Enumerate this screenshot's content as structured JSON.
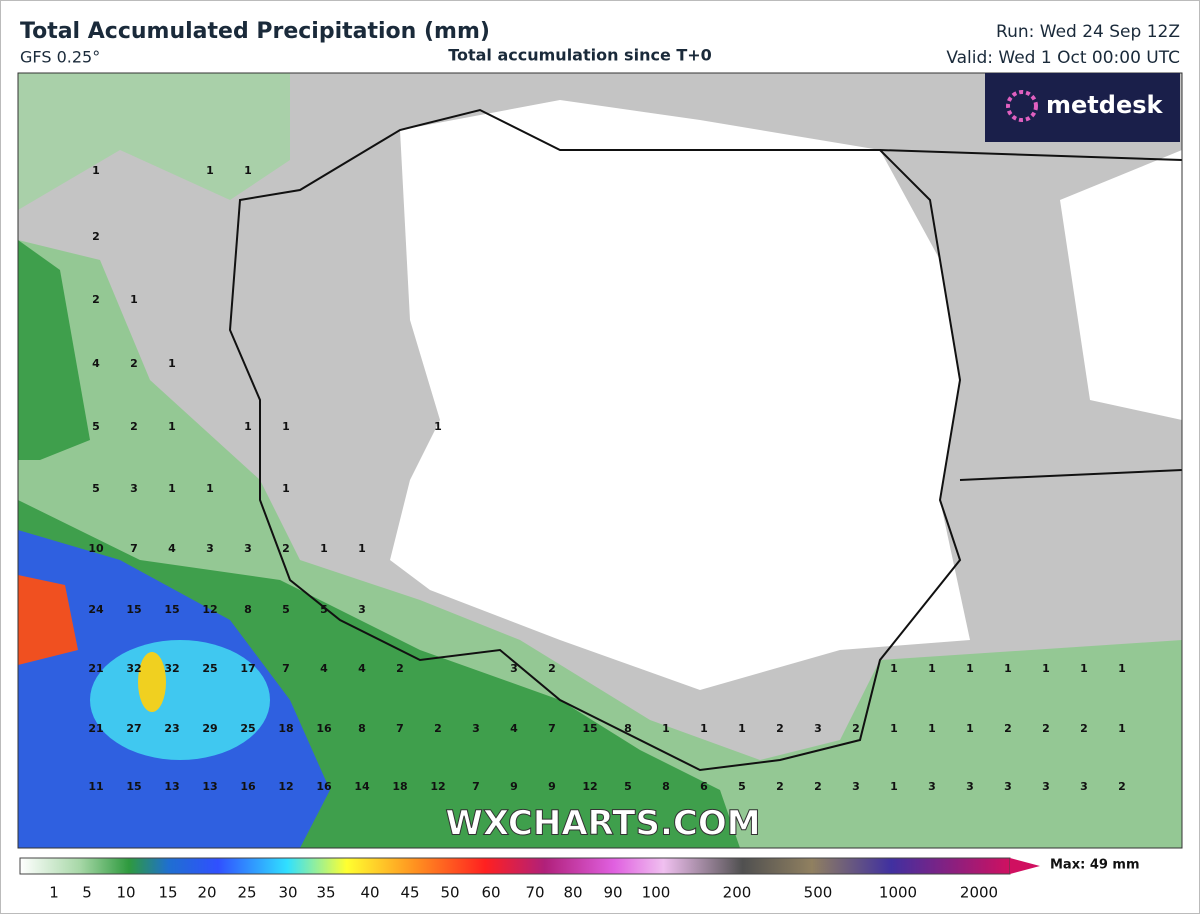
{
  "header": {
    "title": "Total Accumulated Precipitation (mm)",
    "model": "GFS 0.25°",
    "subtitle": "Total accumulation since T+0",
    "run": "Run: Wed 24 Sep 12Z",
    "valid": "Valid: Wed 1 Oct 00:00 UTC"
  },
  "logo": "metdesk",
  "watermark": "WXCHARTS.COM",
  "map": {
    "point_values": [
      [
        1,
        null,
        null,
        1,
        1,
        null,
        null,
        null,
        null,
        null,
        null,
        null,
        null,
        null,
        null,
        null,
        null,
        null,
        null,
        null,
        null,
        null,
        null,
        null,
        null,
        null,
        null,
        null
      ],
      [
        2,
        null,
        null,
        null,
        null,
        null,
        null,
        null,
        null,
        null,
        null,
        null,
        null,
        null,
        null,
        null,
        null,
        null,
        null,
        null,
        null,
        null,
        null,
        null,
        null,
        null,
        null,
        null
      ],
      [
        2,
        1,
        null,
        null,
        null,
        null,
        null,
        null,
        null,
        null,
        null,
        null,
        null,
        null,
        null,
        null,
        null,
        null,
        null,
        null,
        null,
        null,
        null,
        null,
        null,
        null,
        null,
        null
      ],
      [
        4,
        2,
        1,
        null,
        null,
        null,
        null,
        null,
        null,
        null,
        null,
        null,
        null,
        null,
        null,
        null,
        null,
        null,
        null,
        null,
        null,
        null,
        null,
        null,
        null,
        null,
        null,
        null
      ],
      [
        5,
        2,
        1,
        null,
        1,
        1,
        null,
        null,
        null,
        1,
        null,
        null,
        null,
        null,
        null,
        null,
        null,
        null,
        null,
        null,
        null,
        null,
        null,
        null,
        null,
        null,
        null,
        null
      ],
      [
        5,
        3,
        1,
        1,
        null,
        1,
        null,
        null,
        null,
        null,
        null,
        null,
        null,
        null,
        null,
        null,
        null,
        null,
        null,
        null,
        null,
        null,
        null,
        null,
        null,
        null,
        null,
        null
      ],
      [
        10,
        7,
        4,
        3,
        3,
        2,
        1,
        1,
        null,
        null,
        null,
        null,
        null,
        null,
        null,
        null,
        null,
        null,
        null,
        null,
        null,
        null,
        null,
        null,
        null,
        null,
        null,
        null
      ],
      [
        24,
        15,
        15,
        12,
        8,
        5,
        5,
        3,
        null,
        null,
        null,
        null,
        null,
        null,
        null,
        null,
        null,
        null,
        null,
        null,
        null,
        null,
        null,
        null,
        null,
        null,
        null,
        null
      ],
      [
        21,
        32,
        32,
        25,
        17,
        7,
        4,
        4,
        2,
        null,
        null,
        3,
        2,
        null,
        null,
        null,
        null,
        null,
        null,
        null,
        null,
        1,
        1,
        1,
        1,
        1,
        1,
        1
      ],
      [
        21,
        27,
        23,
        29,
        25,
        18,
        16,
        8,
        7,
        2,
        3,
        4,
        7,
        15,
        8,
        1,
        1,
        1,
        2,
        3,
        2,
        1,
        1,
        1,
        2,
        2,
        2,
        1
      ],
      [
        11,
        15,
        13,
        13,
        16,
        12,
        16,
        14,
        18,
        12,
        7,
        9,
        9,
        12,
        5,
        8,
        6,
        5,
        2,
        2,
        3,
        1,
        3,
        3,
        3,
        3,
        3,
        2
      ]
    ]
  },
  "legend": {
    "labels": [
      1,
      5,
      10,
      15,
      20,
      25,
      30,
      35,
      40,
      45,
      50,
      60,
      70,
      80,
      90,
      100,
      200,
      500,
      1000,
      2000
    ],
    "max": "Max: 49 mm"
  }
}
